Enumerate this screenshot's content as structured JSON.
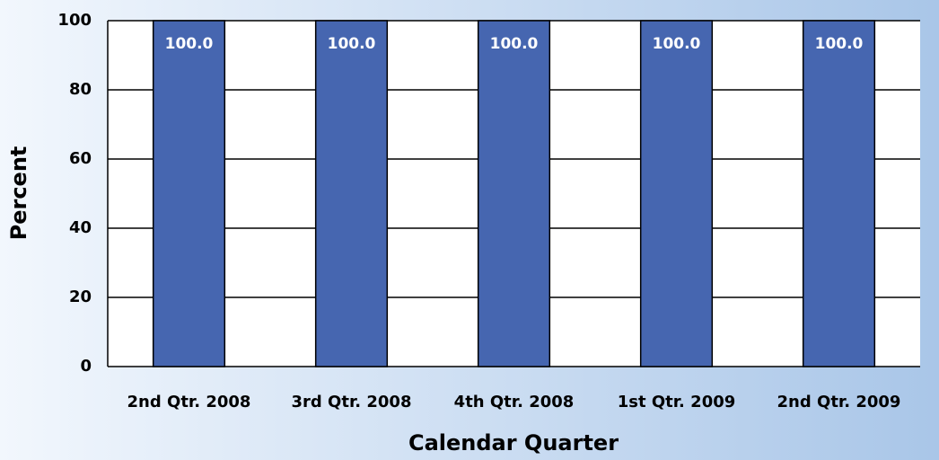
{
  "chart_data": {
    "type": "bar",
    "xlabel": "Calendar Quarter",
    "ylabel": "Percent",
    "categories": [
      "2nd Qtr. 2008",
      "3rd Qtr. 2008",
      "4th Qtr. 2008",
      "1st Qtr. 2009",
      "2nd Qtr. 2009"
    ],
    "values": [
      100,
      100,
      100,
      100,
      100
    ],
    "value_labels": [
      "100.0",
      "100.0",
      "100.0",
      "100.0",
      "100.0"
    ],
    "color": "#4666b0",
    "ylim": [
      0,
      100
    ],
    "yticks": [
      0,
      20,
      40,
      60,
      80,
      100
    ],
    "grid": true
  }
}
